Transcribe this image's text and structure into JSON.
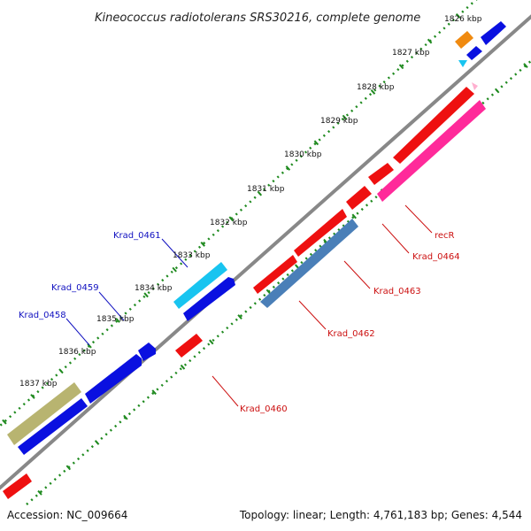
{
  "title": "Kineococcus radiotolerans SRS30216, complete genome",
  "footer": {
    "accession": "Accession: NC_009664",
    "summary": "Topology: linear; Length: 4,761,183 bp; Genes: 4,544"
  },
  "ticks": [
    "1826 kbp",
    "1827 kbp",
    "1828 kbp",
    "1829 kbp",
    "1830 kbp",
    "1831 kbp",
    "1832 kbp",
    "1833 kbp",
    "1834 kbp",
    "1835 kbp",
    "1836 kbp",
    "1837 kbp"
  ],
  "gene_labels": {
    "krad_0461": "Krad_0461",
    "krad_0459": "Krad_0459",
    "krad_0458": "Krad_0458",
    "recr": "recR",
    "krad_0464": "Krad_0464",
    "krad_0463": "Krad_0463",
    "krad_0462": "Krad_0462",
    "krad_0460": "Krad_0460"
  },
  "colors": {
    "blue": "#0a10e0",
    "red": "#ee1010",
    "pink": "#ff2a9a",
    "cyan": "#18c4f0",
    "steel": "#4a7fb8",
    "olive": "#b8b470",
    "orange": "#f08a10",
    "backbone": "#8a8a8a",
    "dots": "#1f8a1f"
  }
}
